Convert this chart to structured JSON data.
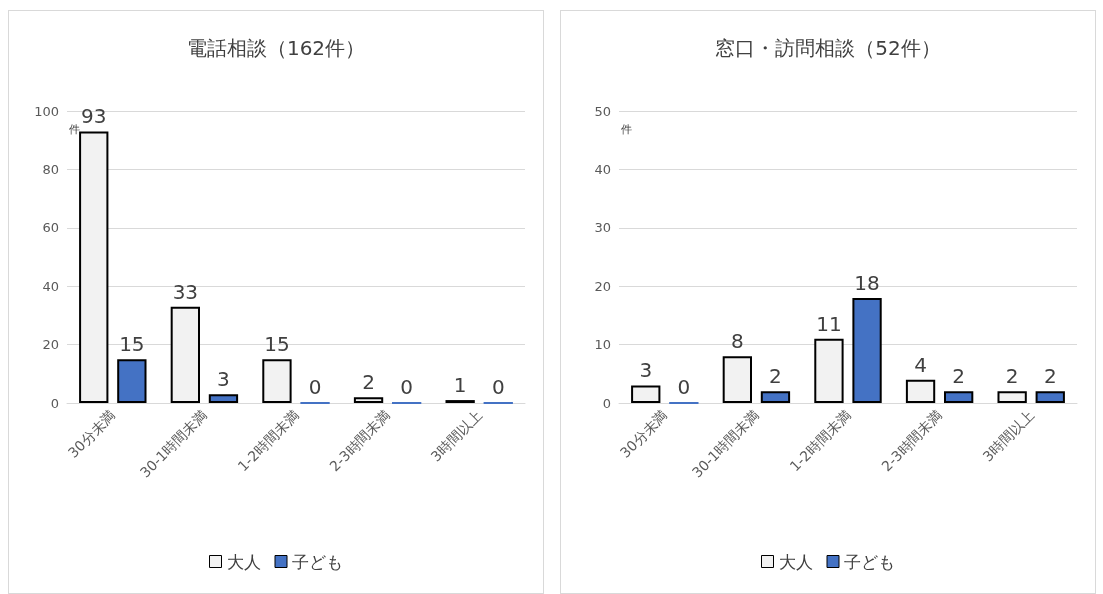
{
  "chart_data": [
    {
      "type": "bar",
      "title": "電話相談（162件）",
      "ylabel": "件",
      "categories": [
        "30分未満",
        "30-1時間未満",
        "1-2時間未満",
        "2-3時間未満",
        "3時間以上"
      ],
      "series": [
        {
          "name": "大人",
          "color": "#f2f2f2",
          "values": [
            93,
            33,
            15,
            2,
            1
          ]
        },
        {
          "name": "子ども",
          "color": "#4472c4",
          "values": [
            15,
            3,
            0,
            0,
            0
          ]
        }
      ],
      "ylim": [
        0,
        100
      ],
      "yticks": [
        0,
        20,
        40,
        60,
        80,
        100
      ],
      "grid": "y",
      "legend": "bottom",
      "data_labels": true
    },
    {
      "type": "bar",
      "title": "窓口・訪問相談（52件）",
      "ylabel": "件",
      "categories": [
        "30分未満",
        "30-1時間未満",
        "1-2時間未満",
        "2-3時間未満",
        "3時間以上"
      ],
      "series": [
        {
          "name": "大人",
          "color": "#f2f2f2",
          "values": [
            3,
            8,
            11,
            4,
            2
          ]
        },
        {
          "name": "子ども",
          "color": "#4472c4",
          "values": [
            0,
            2,
            18,
            2,
            2
          ]
        }
      ],
      "ylim": [
        0,
        50
      ],
      "yticks": [
        0,
        10,
        20,
        30,
        40,
        50
      ],
      "grid": "y",
      "legend": "bottom",
      "data_labels": true
    }
  ]
}
